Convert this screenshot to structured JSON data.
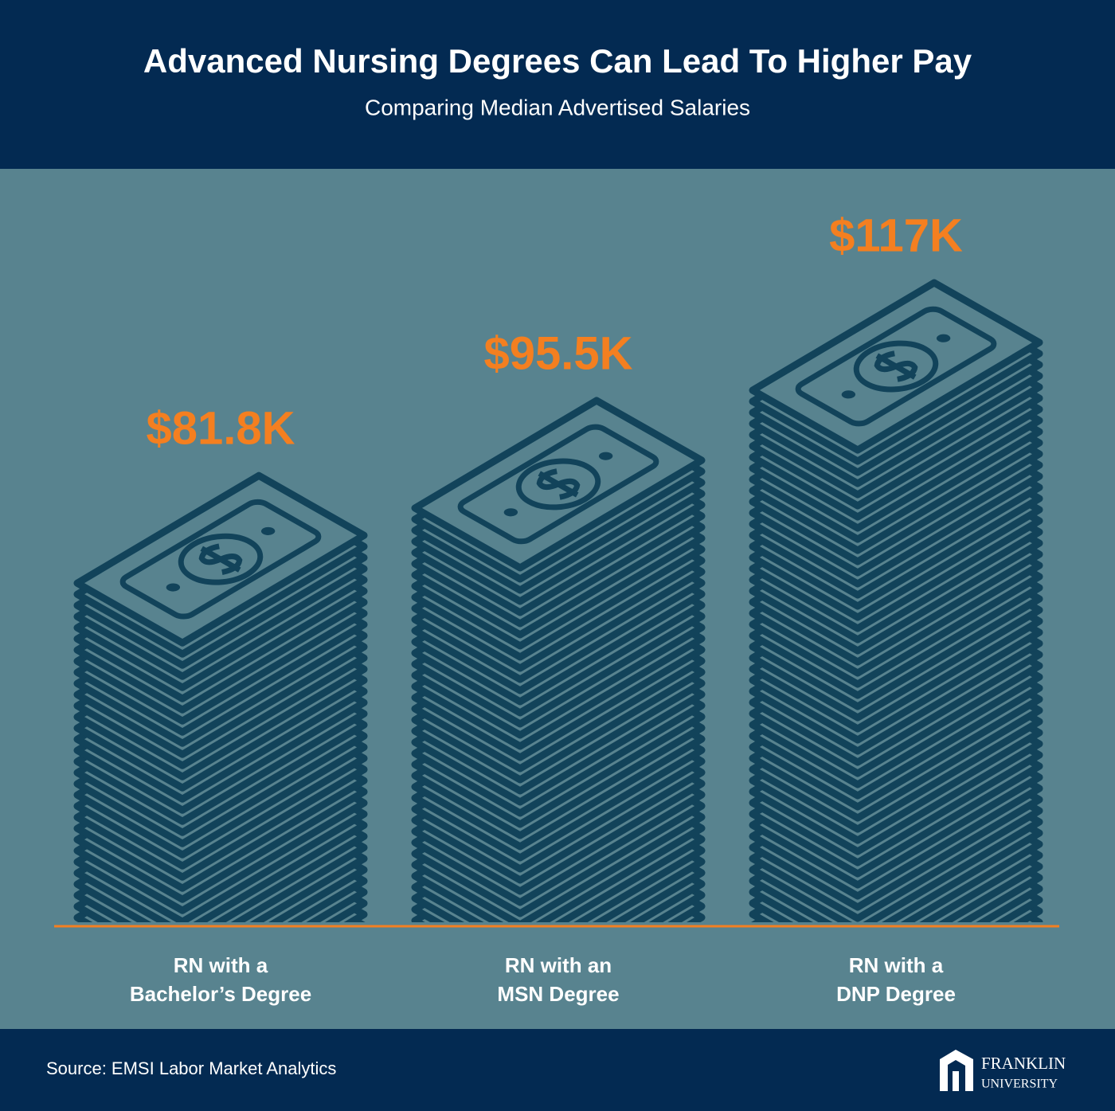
{
  "chart_data": {
    "type": "money-stack",
    "title": "Advanced Nursing Degrees Can Lead To Higher Pay",
    "subtitle": "Comparing Median Advertised Salaries",
    "categories": [
      "RN with a\nBachelor’s Degree",
      "RN with an\nMSN Degree",
      "RN with a\nDNP Degree"
    ],
    "values": [
      81.8,
      95.5,
      117
    ],
    "value_labels": [
      "$81.8K",
      "$95.5K",
      "$117K"
    ],
    "color": "#12435a",
    "label_color": "#f47f20",
    "source": "Source: EMSI Labor Market Analytics",
    "logo": {
      "line1": "FRANKLIN",
      "line2": "UNIVERSITY"
    }
  }
}
